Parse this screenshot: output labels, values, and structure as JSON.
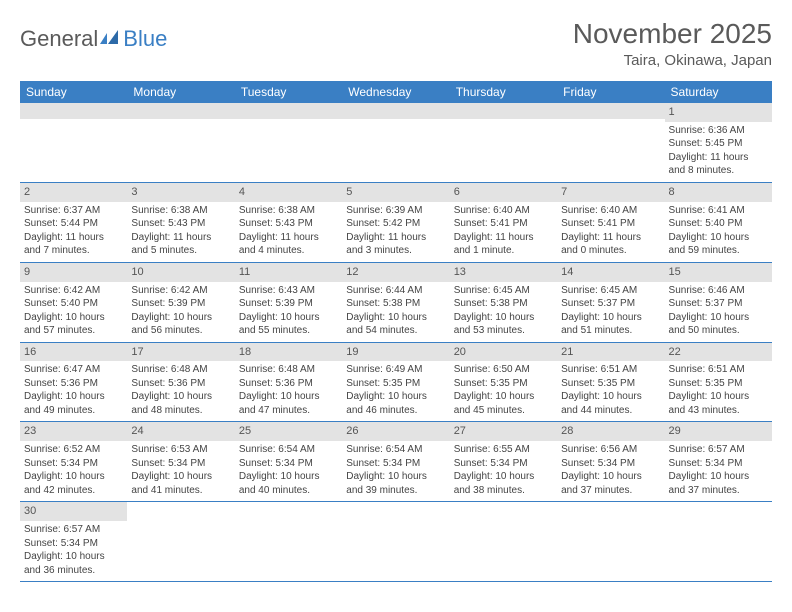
{
  "logo": {
    "part1": "General",
    "part2": "Blue"
  },
  "title": "November 2025",
  "location": "Taira, Okinawa, Japan",
  "colors": {
    "header_bg": "#3a7fc4",
    "header_text": "#ffffff",
    "daynum_bg": "#e3e3e3",
    "row_divider": "#3a7fc4",
    "text": "#444444",
    "title_text": "#5a5a5a"
  },
  "day_names": [
    "Sunday",
    "Monday",
    "Tuesday",
    "Wednesday",
    "Thursday",
    "Friday",
    "Saturday"
  ],
  "weeks": [
    [
      {
        "n": "",
        "l": []
      },
      {
        "n": "",
        "l": []
      },
      {
        "n": "",
        "l": []
      },
      {
        "n": "",
        "l": []
      },
      {
        "n": "",
        "l": []
      },
      {
        "n": "",
        "l": []
      },
      {
        "n": "1",
        "l": [
          "Sunrise: 6:36 AM",
          "Sunset: 5:45 PM",
          "Daylight: 11 hours",
          "and 8 minutes."
        ]
      }
    ],
    [
      {
        "n": "2",
        "l": [
          "Sunrise: 6:37 AM",
          "Sunset: 5:44 PM",
          "Daylight: 11 hours",
          "and 7 minutes."
        ]
      },
      {
        "n": "3",
        "l": [
          "Sunrise: 6:38 AM",
          "Sunset: 5:43 PM",
          "Daylight: 11 hours",
          "and 5 minutes."
        ]
      },
      {
        "n": "4",
        "l": [
          "Sunrise: 6:38 AM",
          "Sunset: 5:43 PM",
          "Daylight: 11 hours",
          "and 4 minutes."
        ]
      },
      {
        "n": "5",
        "l": [
          "Sunrise: 6:39 AM",
          "Sunset: 5:42 PM",
          "Daylight: 11 hours",
          "and 3 minutes."
        ]
      },
      {
        "n": "6",
        "l": [
          "Sunrise: 6:40 AM",
          "Sunset: 5:41 PM",
          "Daylight: 11 hours",
          "and 1 minute."
        ]
      },
      {
        "n": "7",
        "l": [
          "Sunrise: 6:40 AM",
          "Sunset: 5:41 PM",
          "Daylight: 11 hours",
          "and 0 minutes."
        ]
      },
      {
        "n": "8",
        "l": [
          "Sunrise: 6:41 AM",
          "Sunset: 5:40 PM",
          "Daylight: 10 hours",
          "and 59 minutes."
        ]
      }
    ],
    [
      {
        "n": "9",
        "l": [
          "Sunrise: 6:42 AM",
          "Sunset: 5:40 PM",
          "Daylight: 10 hours",
          "and 57 minutes."
        ]
      },
      {
        "n": "10",
        "l": [
          "Sunrise: 6:42 AM",
          "Sunset: 5:39 PM",
          "Daylight: 10 hours",
          "and 56 minutes."
        ]
      },
      {
        "n": "11",
        "l": [
          "Sunrise: 6:43 AM",
          "Sunset: 5:39 PM",
          "Daylight: 10 hours",
          "and 55 minutes."
        ]
      },
      {
        "n": "12",
        "l": [
          "Sunrise: 6:44 AM",
          "Sunset: 5:38 PM",
          "Daylight: 10 hours",
          "and 54 minutes."
        ]
      },
      {
        "n": "13",
        "l": [
          "Sunrise: 6:45 AM",
          "Sunset: 5:38 PM",
          "Daylight: 10 hours",
          "and 53 minutes."
        ]
      },
      {
        "n": "14",
        "l": [
          "Sunrise: 6:45 AM",
          "Sunset: 5:37 PM",
          "Daylight: 10 hours",
          "and 51 minutes."
        ]
      },
      {
        "n": "15",
        "l": [
          "Sunrise: 6:46 AM",
          "Sunset: 5:37 PM",
          "Daylight: 10 hours",
          "and 50 minutes."
        ]
      }
    ],
    [
      {
        "n": "16",
        "l": [
          "Sunrise: 6:47 AM",
          "Sunset: 5:36 PM",
          "Daylight: 10 hours",
          "and 49 minutes."
        ]
      },
      {
        "n": "17",
        "l": [
          "Sunrise: 6:48 AM",
          "Sunset: 5:36 PM",
          "Daylight: 10 hours",
          "and 48 minutes."
        ]
      },
      {
        "n": "18",
        "l": [
          "Sunrise: 6:48 AM",
          "Sunset: 5:36 PM",
          "Daylight: 10 hours",
          "and 47 minutes."
        ]
      },
      {
        "n": "19",
        "l": [
          "Sunrise: 6:49 AM",
          "Sunset: 5:35 PM",
          "Daylight: 10 hours",
          "and 46 minutes."
        ]
      },
      {
        "n": "20",
        "l": [
          "Sunrise: 6:50 AM",
          "Sunset: 5:35 PM",
          "Daylight: 10 hours",
          "and 45 minutes."
        ]
      },
      {
        "n": "21",
        "l": [
          "Sunrise: 6:51 AM",
          "Sunset: 5:35 PM",
          "Daylight: 10 hours",
          "and 44 minutes."
        ]
      },
      {
        "n": "22",
        "l": [
          "Sunrise: 6:51 AM",
          "Sunset: 5:35 PM",
          "Daylight: 10 hours",
          "and 43 minutes."
        ]
      }
    ],
    [
      {
        "n": "23",
        "l": [
          "Sunrise: 6:52 AM",
          "Sunset: 5:34 PM",
          "Daylight: 10 hours",
          "and 42 minutes."
        ]
      },
      {
        "n": "24",
        "l": [
          "Sunrise: 6:53 AM",
          "Sunset: 5:34 PM",
          "Daylight: 10 hours",
          "and 41 minutes."
        ]
      },
      {
        "n": "25",
        "l": [
          "Sunrise: 6:54 AM",
          "Sunset: 5:34 PM",
          "Daylight: 10 hours",
          "and 40 minutes."
        ]
      },
      {
        "n": "26",
        "l": [
          "Sunrise: 6:54 AM",
          "Sunset: 5:34 PM",
          "Daylight: 10 hours",
          "and 39 minutes."
        ]
      },
      {
        "n": "27",
        "l": [
          "Sunrise: 6:55 AM",
          "Sunset: 5:34 PM",
          "Daylight: 10 hours",
          "and 38 minutes."
        ]
      },
      {
        "n": "28",
        "l": [
          "Sunrise: 6:56 AM",
          "Sunset: 5:34 PM",
          "Daylight: 10 hours",
          "and 37 minutes."
        ]
      },
      {
        "n": "29",
        "l": [
          "Sunrise: 6:57 AM",
          "Sunset: 5:34 PM",
          "Daylight: 10 hours",
          "and 37 minutes."
        ]
      }
    ],
    [
      {
        "n": "30",
        "l": [
          "Sunrise: 6:57 AM",
          "Sunset: 5:34 PM",
          "Daylight: 10 hours",
          "and 36 minutes."
        ]
      },
      {
        "n": "",
        "l": []
      },
      {
        "n": "",
        "l": []
      },
      {
        "n": "",
        "l": []
      },
      {
        "n": "",
        "l": []
      },
      {
        "n": "",
        "l": []
      },
      {
        "n": "",
        "l": []
      }
    ]
  ]
}
